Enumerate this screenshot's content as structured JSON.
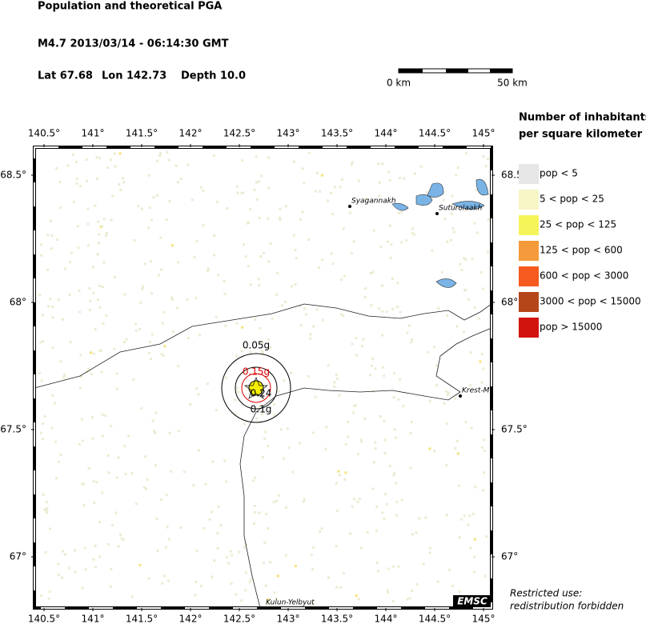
{
  "header": {
    "title": "Population and theoretical PGA",
    "event": "M4.7  2013/03/14 - 06:14:30 GMT",
    "lat": "Lat 67.68",
    "lon": "Lon 142.73",
    "depth": "Depth  10.0"
  },
  "scale": {
    "start": "0 km",
    "end": "50 km"
  },
  "map": {
    "lon_ticks": [
      {
        "value": 140.5,
        "label": "140.5°"
      },
      {
        "value": 141,
        "label": "141°"
      },
      {
        "value": 141.5,
        "label": "141.5°"
      },
      {
        "value": 142,
        "label": "142°"
      },
      {
        "value": 142.5,
        "label": "142.5°"
      },
      {
        "value": 143,
        "label": "143°"
      },
      {
        "value": 143.5,
        "label": "143.5°"
      },
      {
        "value": 144,
        "label": "144°"
      },
      {
        "value": 144.5,
        "label": "144.5°"
      },
      {
        "value": 145,
        "label": "145°"
      }
    ],
    "lat_ticks": [
      {
        "value": 68.5,
        "label": "68.5°"
      },
      {
        "value": 68,
        "label": "68°"
      },
      {
        "value": 67.5,
        "label": "67.5°"
      },
      {
        "value": 67,
        "label": "67°"
      }
    ],
    "places": [
      "Syagannakh",
      "Suturolaakh",
      "Krest-M",
      "Kulun-Yelbyut"
    ],
    "pga": [
      "0.05g",
      "0.15g",
      "0.24",
      "0.1g"
    ],
    "logo": "EMSC"
  },
  "legend": {
    "title": [
      "Number of inhabitants",
      "per square kilometer"
    ],
    "items": [
      {
        "label": "pop < 5",
        "color": "#e6e6e6"
      },
      {
        "label": "5 < pop < 25",
        "color": "#f7f5c6"
      },
      {
        "label": "25 < pop < 125",
        "color": "#f5f55a"
      },
      {
        "label": "125 < pop < 600",
        "color": "#f59a3a"
      },
      {
        "label": "600 < pop < 3000",
        "color": "#f55a1e"
      },
      {
        "label": "3000 < pop < 15000",
        "color": "#b4461a"
      },
      {
        "label": "pop > 15000",
        "color": "#d2140f"
      }
    ]
  },
  "footer": [
    "Restricted use:",
    "redistribution forbidden"
  ]
}
